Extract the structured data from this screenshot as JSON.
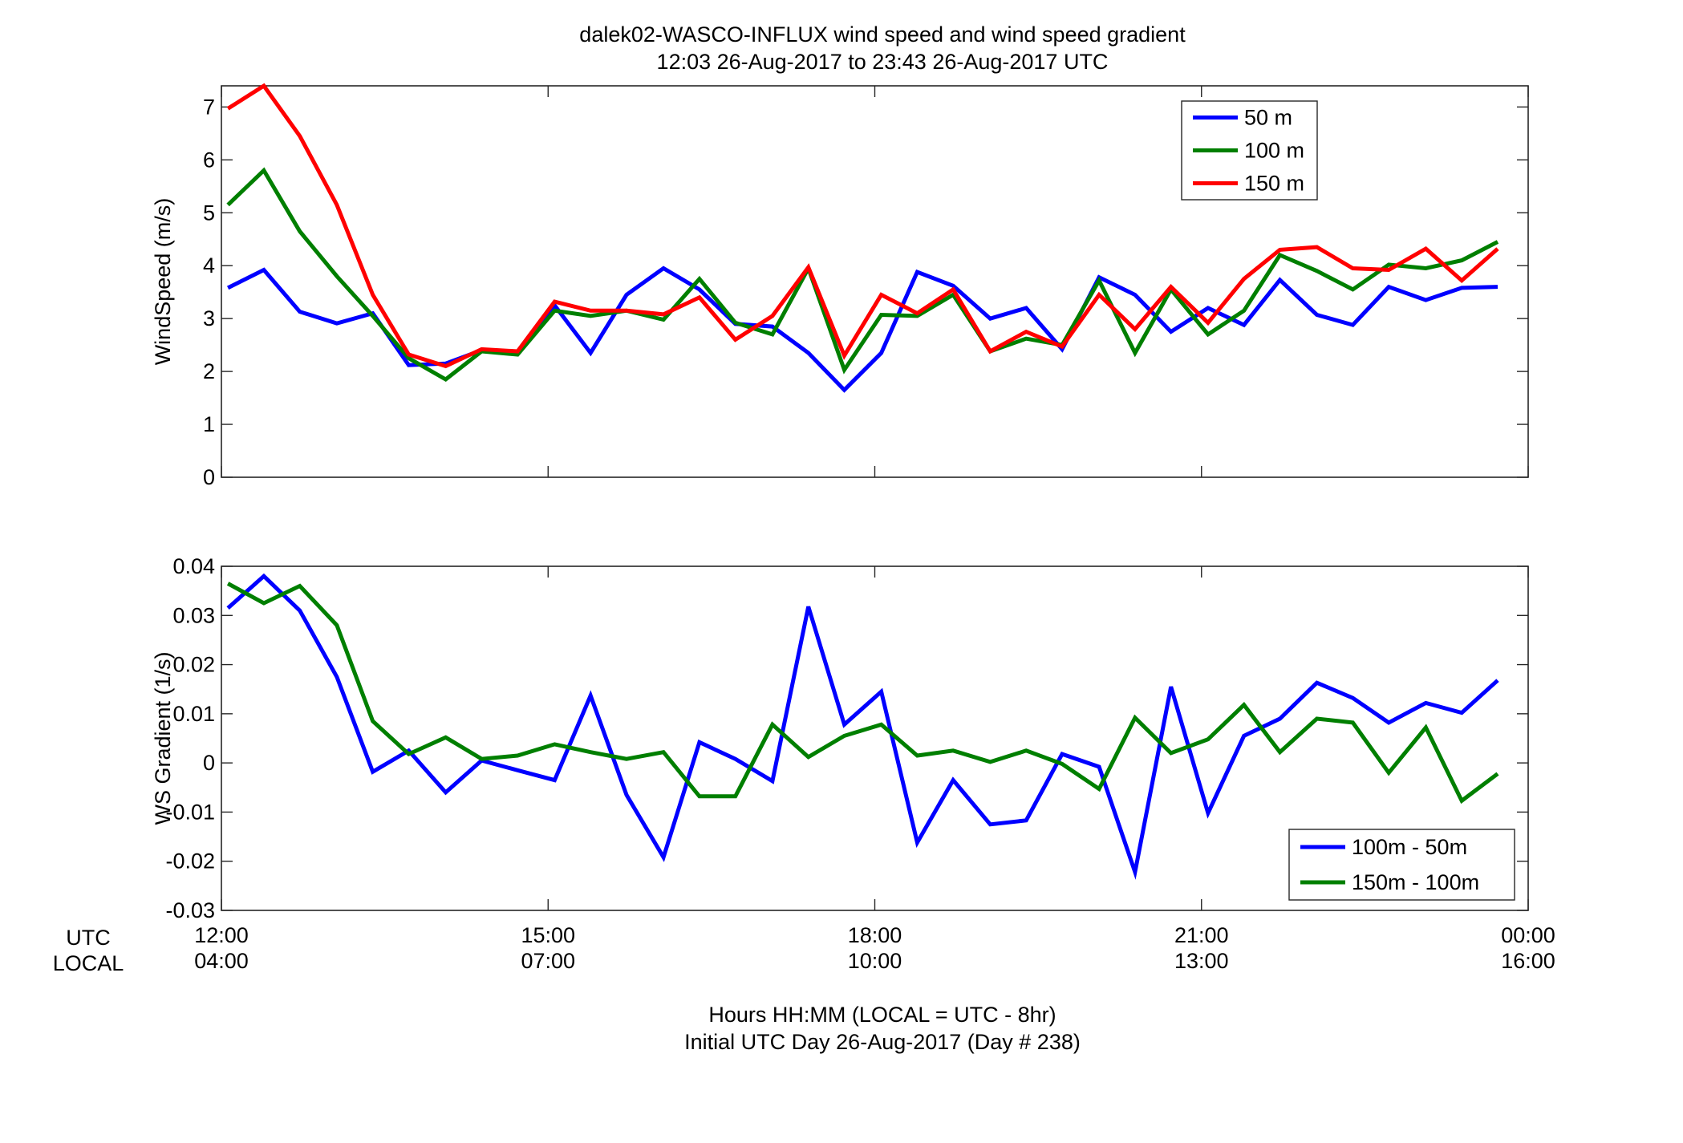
{
  "title": {
    "line1": "dalek02-WASCO-INFLUX  wind speed and wind speed gradient",
    "line2": "12:03 26-Aug-2017 to 23:43 26-Aug-2017  UTC"
  },
  "xaxis": {
    "utc_label": "UTC",
    "local_label": "LOCAL",
    "caption_line1": "Hours HH:MM  (LOCAL = UTC - 8hr)",
    "caption_line2": "Initial UTC Day 26-Aug-2017 (Day # 238)"
  },
  "chart_data": [
    {
      "type": "line",
      "ylabel": "WindSpeed (m/s)",
      "xlim": [
        12,
        24
      ],
      "ylim": [
        0,
        7.4
      ],
      "yticks": [
        0,
        1,
        2,
        3,
        4,
        5,
        6,
        7
      ],
      "xticks": [
        12,
        15,
        18,
        21,
        24
      ],
      "xtick_labels_utc": [
        "12:00",
        "15:00",
        "18:00",
        "21:00",
        "00:00"
      ],
      "xtick_labels_local": [
        "04:00",
        "07:00",
        "10:00",
        "13:00",
        "16:00"
      ],
      "grid": false,
      "legend_position": "top-right",
      "x": [
        12.06,
        12.39,
        12.72,
        13.06,
        13.39,
        13.72,
        14.06,
        14.39,
        14.72,
        15.06,
        15.39,
        15.72,
        16.06,
        16.39,
        16.72,
        17.06,
        17.39,
        17.72,
        18.06,
        18.39,
        18.72,
        19.06,
        19.39,
        19.72,
        20.06,
        20.39,
        20.72,
        21.06,
        21.39,
        21.72,
        22.06,
        22.39,
        22.72,
        23.06,
        23.39,
        23.72
      ],
      "series": [
        {
          "name": "50 m",
          "color": "#0000ff",
          "values": [
            3.58,
            3.92,
            3.13,
            2.91,
            3.1,
            2.12,
            2.15,
            2.4,
            2.35,
            3.25,
            2.35,
            3.45,
            3.95,
            3.55,
            2.9,
            2.85,
            2.35,
            1.65,
            2.35,
            3.88,
            3.62,
            3.0,
            3.2,
            2.42,
            3.78,
            3.45,
            2.75,
            3.2,
            2.88,
            3.73,
            3.07,
            2.88,
            3.6,
            3.35,
            3.58,
            3.6
          ]
        },
        {
          "name": "100 m",
          "color": "#007f00",
          "values": [
            5.15,
            5.8,
            4.65,
            3.8,
            3.05,
            2.25,
            1.85,
            2.38,
            2.32,
            3.15,
            3.05,
            3.15,
            2.98,
            3.75,
            2.92,
            2.7,
            3.95,
            2.03,
            3.07,
            3.05,
            3.45,
            2.38,
            2.62,
            2.5,
            3.72,
            2.35,
            3.55,
            2.7,
            3.15,
            4.2,
            3.9,
            3.55,
            4.02,
            3.95,
            4.1,
            4.45
          ]
        },
        {
          "name": "150 m",
          "color": "#ff0000",
          "values": [
            6.97,
            7.4,
            6.45,
            5.15,
            3.45,
            2.32,
            2.1,
            2.42,
            2.38,
            3.32,
            3.15,
            3.15,
            3.08,
            3.4,
            2.6,
            3.05,
            3.97,
            2.3,
            3.45,
            3.1,
            3.55,
            2.38,
            2.75,
            2.47,
            3.45,
            2.8,
            3.6,
            2.92,
            3.75,
            4.3,
            4.35,
            3.95,
            3.92,
            4.32,
            3.72,
            4.32
          ]
        }
      ]
    },
    {
      "type": "line",
      "ylabel": "WS Gradient (1/s)",
      "xlim": [
        12,
        24
      ],
      "ylim": [
        -0.03,
        0.04
      ],
      "yticks": [
        -0.03,
        -0.02,
        -0.01,
        0,
        0.01,
        0.02,
        0.03,
        0.04
      ],
      "ytick_labels": [
        "-0.03",
        "-0.02",
        "-0.01",
        "0",
        "0.01",
        "0.02",
        "0.03",
        "0.04"
      ],
      "xticks": [
        12,
        15,
        18,
        21,
        24
      ],
      "grid": false,
      "legend_position": "bottom-right",
      "x": [
        12.06,
        12.39,
        12.72,
        13.06,
        13.39,
        13.72,
        14.06,
        14.39,
        14.72,
        15.06,
        15.39,
        15.72,
        16.06,
        16.39,
        16.72,
        17.06,
        17.39,
        17.72,
        18.06,
        18.39,
        18.72,
        19.06,
        19.39,
        19.72,
        20.06,
        20.39,
        20.72,
        21.06,
        21.39,
        21.72,
        22.06,
        22.39,
        22.72,
        23.06,
        23.39,
        23.72
      ],
      "series": [
        {
          "name": "100m - 50m",
          "color": "#0000ff",
          "values": [
            0.0315,
            0.038,
            0.031,
            0.0175,
            -0.0018,
            0.0025,
            -0.006,
            0.0005,
            -0.0015,
            -0.0035,
            0.0137,
            -0.0065,
            -0.0192,
            0.0042,
            0.0008,
            -0.0037,
            0.0318,
            0.0078,
            0.0145,
            -0.0162,
            -0.0035,
            -0.0125,
            -0.0117,
            0.0018,
            -0.0008,
            -0.0222,
            0.0155,
            -0.0102,
            0.0055,
            0.009,
            0.0163,
            0.0132,
            0.0082,
            0.0122,
            0.0102,
            0.0168
          ]
        },
        {
          "name": "150m - 100m",
          "color": "#007f00",
          "values": [
            0.0365,
            0.0325,
            0.036,
            0.028,
            0.0085,
            0.0018,
            0.0052,
            0.0008,
            0.0015,
            0.0038,
            0.0022,
            0.0008,
            0.0022,
            -0.0068,
            -0.0068,
            0.0078,
            0.0012,
            0.0055,
            0.0078,
            0.0015,
            0.0025,
            0.0002,
            0.0025,
            -0.0002,
            -0.0053,
            0.0092,
            0.002,
            0.0048,
            0.0118,
            0.0022,
            0.009,
            0.0082,
            -0.002,
            0.0072,
            -0.0077,
            -0.0022
          ]
        }
      ]
    }
  ]
}
